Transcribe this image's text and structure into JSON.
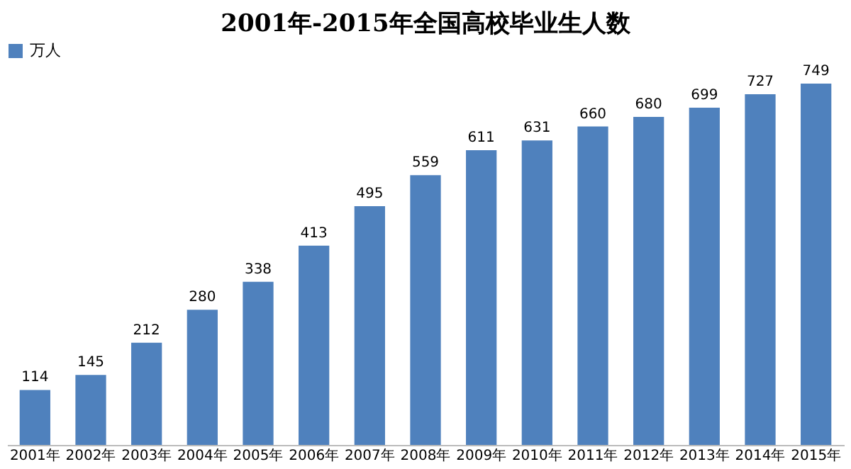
{
  "chart_data": {
    "type": "bar",
    "title": "2001年-2015年全国高校毕业生人数",
    "categories": [
      "2001年",
      "2002年",
      "2003年",
      "2004年",
      "2005年",
      "2006年",
      "2007年",
      "2008年",
      "2009年",
      "2010年",
      "2011年",
      "2012年",
      "2013年",
      "2014年",
      "2015年"
    ],
    "series": [
      {
        "name": "万人",
        "color": "#4f81bd",
        "values": [
          114,
          145,
          212,
          280,
          338,
          413,
          495,
          559,
          611,
          631,
          660,
          680,
          699,
          727,
          749
        ]
      }
    ],
    "data_labels": true,
    "legend": "top",
    "grid": false
  }
}
